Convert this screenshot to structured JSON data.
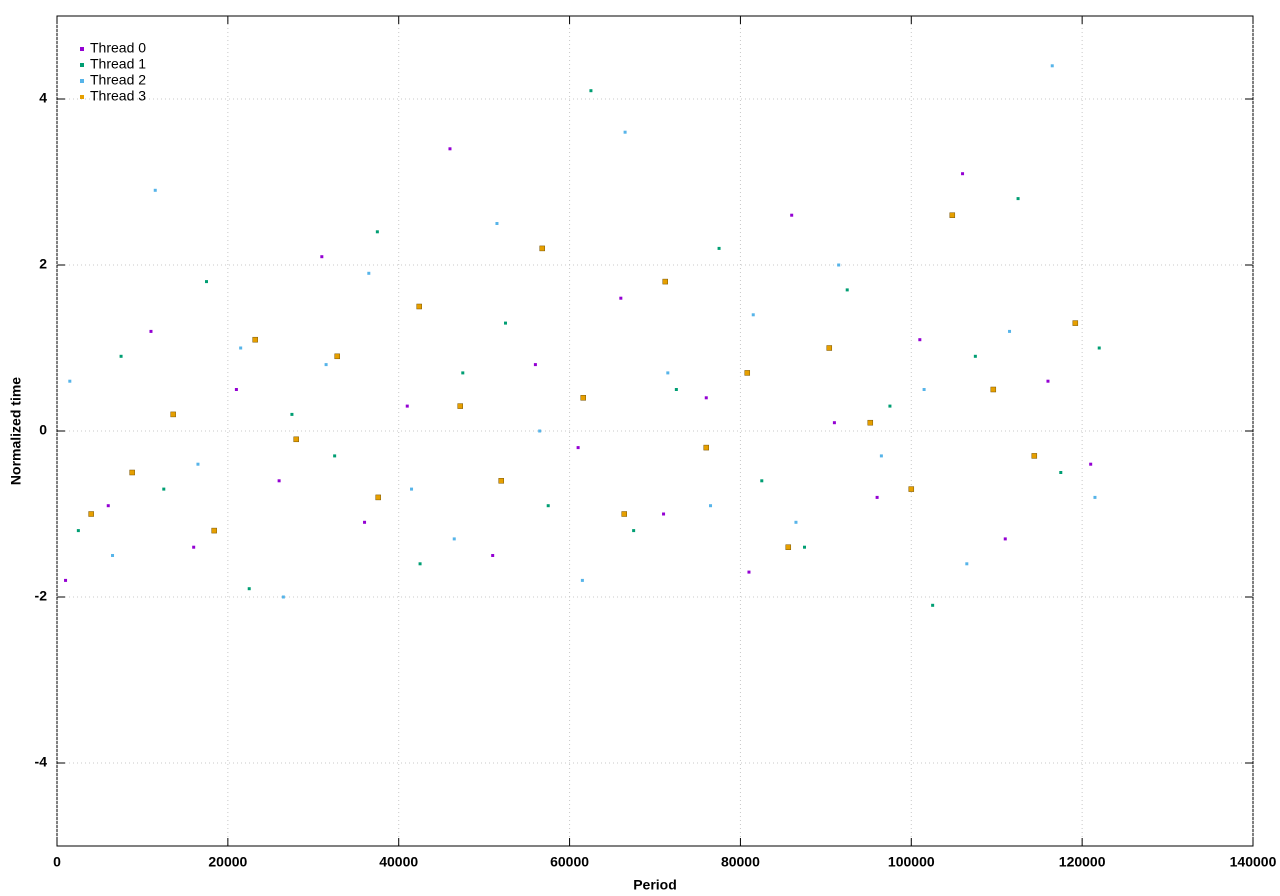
{
  "chart_data": {
    "type": "scatter",
    "xlabel": "Period",
    "ylabel": "Normalized time",
    "xlim": [
      0,
      140000
    ],
    "ylim": [
      -5,
      5
    ],
    "xticks": [
      0,
      20000,
      40000,
      60000,
      80000,
      100000,
      120000,
      140000
    ],
    "yticks": [
      -4,
      -2,
      0,
      2,
      4
    ],
    "grid": true,
    "legend": "upper left",
    "series": [
      {
        "name": "Thread 0",
        "color": "#9400d3",
        "x": [
          1000,
          6000,
          11000,
          16000,
          21000,
          26000,
          31000,
          36000,
          41000,
          46000,
          51000,
          56000,
          61000,
          66000,
          71000,
          76000,
          81000,
          86000,
          91000,
          96000,
          101000,
          106000,
          111000,
          116000,
          121000
        ],
        "values": [
          -1.8,
          -0.9,
          1.2,
          -1.4,
          0.5,
          -0.6,
          2.1,
          -1.1,
          0.3,
          3.4,
          -1.5,
          0.8,
          -0.2,
          1.6,
          -1.0,
          0.4,
          -1.7,
          2.6,
          0.1,
          -0.8,
          1.1,
          3.1,
          -1.3,
          0.6,
          -0.4
        ]
      },
      {
        "name": "Thread 1",
        "color": "#009e73",
        "x": [
          2500,
          7500,
          12500,
          17500,
          22500,
          27500,
          32500,
          37500,
          42500,
          47500,
          52500,
          57500,
          62500,
          67500,
          72500,
          77500,
          82500,
          87500,
          92500,
          97500,
          102500,
          107500,
          112500,
          117500,
          122000
        ],
        "values": [
          -1.2,
          0.9,
          -0.7,
          1.8,
          -1.9,
          0.2,
          -0.3,
          2.4,
          -1.6,
          0.7,
          1.3,
          -0.9,
          4.1,
          -1.2,
          0.5,
          2.2,
          -0.6,
          -1.4,
          1.7,
          0.3,
          -2.1,
          0.9,
          2.8,
          -0.5,
          1.0
        ]
      },
      {
        "name": "Thread 2",
        "color": "#56b4e9",
        "x": [
          1500,
          6500,
          11500,
          16500,
          21500,
          26500,
          31500,
          36500,
          41500,
          46500,
          51500,
          56500,
          61500,
          66500,
          71500,
          76500,
          81500,
          86500,
          91500,
          96500,
          101500,
          106500,
          111500,
          116500,
          121500
        ],
        "values": [
          0.6,
          -1.5,
          2.9,
          -0.4,
          1.0,
          -2.0,
          0.8,
          1.9,
          -0.7,
          -1.3,
          2.5,
          0.0,
          -1.8,
          3.6,
          0.7,
          -0.9,
          1.4,
          -1.1,
          2.0,
          -0.3,
          0.5,
          -1.6,
          1.2,
          4.4,
          -0.8
        ]
      },
      {
        "name": "Thread 3",
        "color": "#e69f00",
        "x": [
          4000,
          8800,
          13600,
          18400,
          23200,
          28000,
          32800,
          37600,
          42400,
          47200,
          52000,
          56800,
          61600,
          66400,
          71200,
          76000,
          80800,
          85600,
          90400,
          95200,
          100000,
          104800,
          109600,
          114400,
          119200
        ],
        "values": [
          -1.0,
          -0.5,
          0.2,
          -1.2,
          1.1,
          -0.1,
          0.9,
          -0.8,
          1.5,
          0.3,
          -0.6,
          2.2,
          0.4,
          -1.0,
          1.8,
          -0.2,
          0.7,
          -1.4,
          1.0,
          0.1,
          -0.7,
          2.6,
          0.5,
          -0.3,
          1.3
        ]
      }
    ]
  }
}
